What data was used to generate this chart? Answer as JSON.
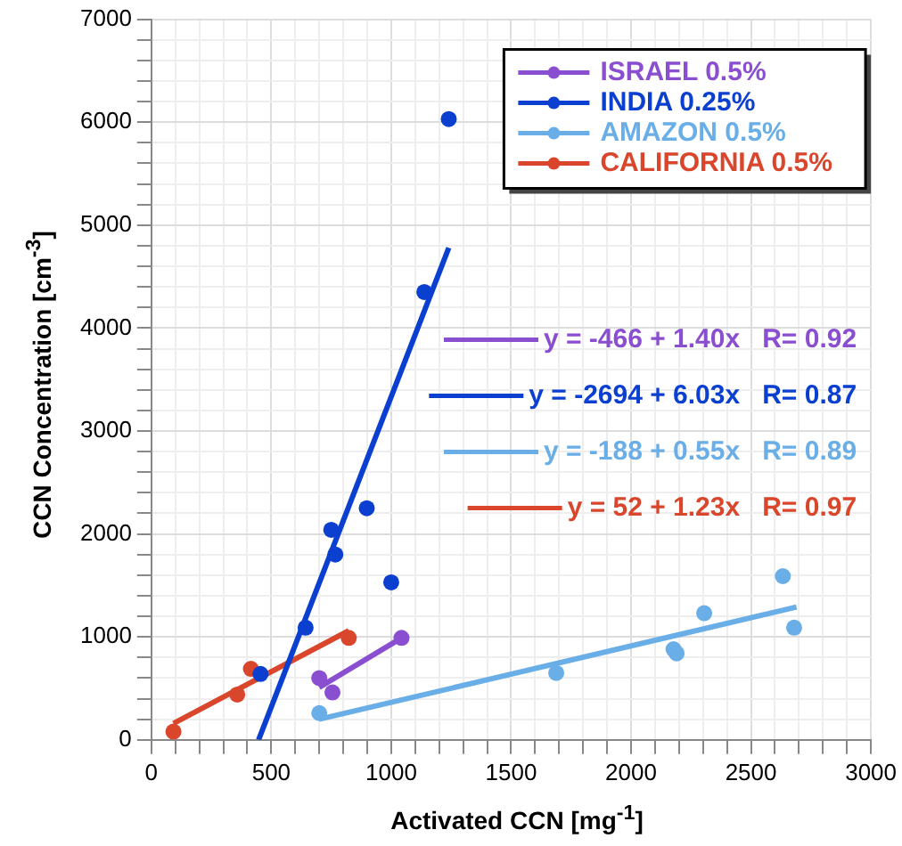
{
  "chart_data": {
    "type": "scatter",
    "xlabel": "Activated CCN [mg$^{-1}$]",
    "ylabel": "CCN Concentration [cm$^{-3}$]",
    "xlim": [
      0,
      3000
    ],
    "ylim": [
      0,
      7000
    ],
    "xticks": [
      0,
      {
        "value": 100,
        "label": null
      },
      {
        "value": 200,
        "label": null
      },
      {
        "value": 300,
        "label": null
      },
      {
        "value": 400,
        "label": null
      },
      500,
      {
        "value": 600,
        "label": null
      },
      {
        "value": 700,
        "label": null
      },
      {
        "value": 800,
        "label": null
      },
      {
        "value": 900,
        "label": null
      },
      1000,
      {
        "value": 1100,
        "label": null
      },
      {
        "value": 1200,
        "label": null
      },
      {
        "value": 1300,
        "label": null
      },
      {
        "value": 1400,
        "label": null
      },
      1500,
      {
        "value": 1600,
        "label": null
      },
      {
        "value": 1700,
        "label": null
      },
      {
        "value": 1800,
        "label": null
      },
      {
        "value": 1900,
        "label": null
      },
      2000,
      {
        "value": 2100,
        "label": null
      },
      {
        "value": 2200,
        "label": null
      },
      {
        "value": 2300,
        "label": null
      },
      {
        "value": 2400,
        "label": null
      },
      2500,
      {
        "value": 2600,
        "label": null
      },
      {
        "value": 2700,
        "label": null
      },
      {
        "value": 2800,
        "label": null
      },
      {
        "value": 2900,
        "label": null
      },
      3000
    ],
    "yticks": [
      0,
      {
        "value": 200,
        "label": null
      },
      {
        "value": 400,
        "label": null
      },
      {
        "value": 600,
        "label": null
      },
      {
        "value": 800,
        "label": null
      },
      1000,
      {
        "value": 1200,
        "label": null
      },
      {
        "value": 1400,
        "label": null
      },
      {
        "value": 1600,
        "label": null
      },
      {
        "value": 1800,
        "label": null
      },
      2000,
      {
        "value": 2200,
        "label": null
      },
      {
        "value": 2400,
        "label": null
      },
      {
        "value": 2600,
        "label": null
      },
      {
        "value": 2800,
        "label": null
      },
      3000,
      {
        "value": 3200,
        "label": null
      },
      {
        "value": 3400,
        "label": null
      },
      {
        "value": 3600,
        "label": null
      },
      {
        "value": 3800,
        "label": null
      },
      4000,
      {
        "value": 4200,
        "label": null
      },
      {
        "value": 4400,
        "label": null
      },
      {
        "value": 4600,
        "label": null
      },
      {
        "value": 4800,
        "label": null
      },
      5000,
      {
        "value": 5200,
        "label": null
      },
      {
        "value": 5400,
        "label": null
      },
      {
        "value": 5600,
        "label": null
      },
      {
        "value": 5800,
        "label": null
      },
      6000,
      {
        "value": 6200,
        "label": null
      },
      {
        "value": 6400,
        "label": null
      },
      {
        "value": 6600,
        "label": null
      },
      {
        "value": 6800,
        "label": null
      },
      7000
    ],
    "grid": true,
    "legend": "top right",
    "marker": "circle",
    "series": [
      {
        "name": "ISRAEL 0.5%",
        "color": "#8a4fd0",
        "x": [
          700,
          755,
          1043
        ],
        "values": [
          600,
          460,
          990
        ]
      },
      {
        "name": "INDIA 0.25%",
        "color": "#0a3fd0",
        "x": [
          455,
          643,
          750,
          767,
          898,
          1000,
          1138,
          1240
        ],
        "values": [
          640,
          1090,
          2040,
          1800,
          2250,
          1530,
          4350,
          6030
        ]
      },
      {
        "name": "AMAZON 0.5%",
        "color": "#6aaee8",
        "x": [
          700,
          1688,
          2177,
          2190,
          2305,
          2633,
          2680
        ],
        "values": [
          260,
          650,
          880,
          840,
          1230,
          1590,
          1090
        ]
      },
      {
        "name": "CALIFORNIA 0.5%",
        "color": "#d9462c",
        "x": [
          92,
          358,
          415,
          823
        ],
        "values": [
          80,
          440,
          690,
          990
        ]
      },
      {
        "name": "y = -466 + 1.40x   R= 0.92",
        "color": "#8a4fd0",
        "type": "line",
        "marker": "none",
        "x": [
          700,
          1043
        ],
        "values": [
          510,
          990
        ]
      },
      {
        "name": "y = -2694 + 6.03x   R= 0.87",
        "color": "#0a3fd0",
        "type": "line",
        "marker": "none",
        "x": [
          447,
          1240
        ],
        "values": [
          0,
          4780
        ]
      },
      {
        "name": "y = -188 + 0.55x   R= 0.89",
        "color": "#6aaee8",
        "type": "line",
        "marker": "none",
        "x": [
          700,
          2690
        ],
        "values": [
          200,
          1290
        ]
      },
      {
        "name": "y = 52 + 1.23x   R= 0.97",
        "color": "#d9462c",
        "type": "line",
        "marker": "none",
        "x": [
          92,
          823
        ],
        "values": [
          160,
          1060
        ]
      }
    ]
  }
}
